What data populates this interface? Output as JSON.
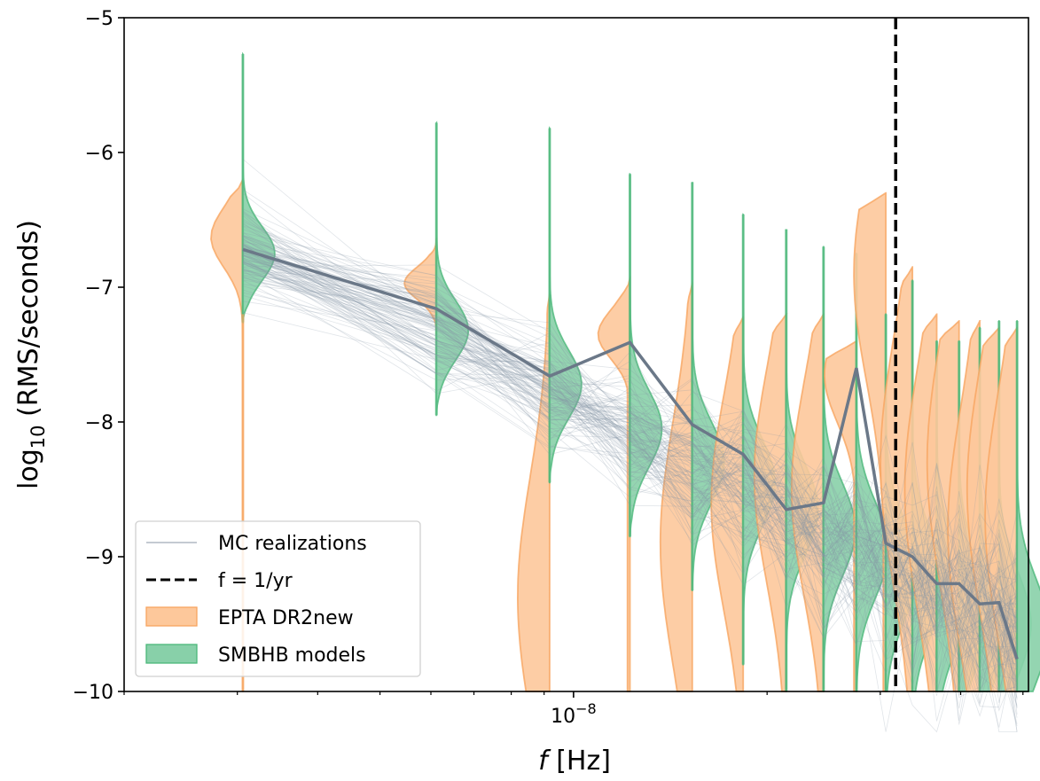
{
  "chart_data": {
    "type": "violin",
    "xlabel_italic": "f",
    "xlabel_unit": "[Hz]",
    "ylabel_main": "log",
    "ylabel_sub": "10",
    "ylabel_rest": " (RMS/seconds)",
    "xscale": "log",
    "xlim": [
      2e-09,
      5.1e-08
    ],
    "ylim": [
      -10,
      -5
    ],
    "grid": false,
    "legend_placement": "lower-left",
    "y_ticks": [
      -5,
      -6,
      -7,
      -8,
      -9,
      -10
    ],
    "y_tick_labels": [
      "−5",
      "−6",
      "−7",
      "−8",
      "−9",
      "−10"
    ],
    "x_major_tick": 1e-08,
    "x_major_tick_label_base": "10",
    "x_major_tick_label_exp": "−8",
    "x_minor_ticks": [
      2e-09,
      3e-09,
      4e-09,
      5e-09,
      6e-09,
      7e-09,
      8e-09,
      9e-09,
      2e-08,
      3e-08,
      4e-08,
      5e-08
    ],
    "frequencies": [
      3.06e-09,
      6.12e-09,
      9.18e-09,
      1.224e-08,
      1.53e-08,
      1.836e-08,
      2.142e-08,
      2.448e-08,
      2.754e-08,
      3.06e-08,
      3.366e-08,
      3.672e-08,
      3.978e-08,
      4.284e-08,
      4.59e-08,
      4.896e-08
    ],
    "one_over_year": 3.17e-08,
    "median_line": [
      -6.72,
      -7.16,
      -7.66,
      -7.41,
      -8.02,
      -8.24,
      -8.65,
      -8.6,
      -7.6,
      -8.9,
      -9.0,
      -9.2,
      -9.2,
      -9.35,
      -9.34,
      -9.76
    ],
    "epta_violins": [
      {
        "lo": -10,
        "hi": -6.2,
        "mode": -6.63,
        "sigma": 0.22
      },
      {
        "lo": -7.35,
        "hi": -6.64,
        "mode": -6.97,
        "sigma": 0.12
      },
      {
        "lo": -10,
        "hi": -7.05,
        "mode": -9.3,
        "sigma": 0.9
      },
      {
        "lo": -10,
        "hi": -6.93,
        "mode": -7.35,
        "sigma": 0.18
      },
      {
        "lo": -10,
        "hi": -6.97,
        "mode": -8.9,
        "sigma": 0.9
      },
      {
        "lo": -10,
        "hi": -7.22,
        "mode": -8.6,
        "sigma": 0.8
      },
      {
        "lo": -10,
        "hi": -7.2,
        "mode": -8.4,
        "sigma": 0.8
      },
      {
        "lo": -10,
        "hi": -7.2,
        "mode": -8.5,
        "sigma": 0.8
      },
      {
        "lo": -10,
        "hi": -7.4,
        "mode": -7.65,
        "sigma": 0.35
      },
      {
        "lo": -10,
        "hi": -6.3,
        "mode": -6.9,
        "sigma": 0.8
      },
      {
        "lo": -10,
        "hi": -6.85,
        "mode": -8.3,
        "sigma": 0.9
      },
      {
        "lo": -10,
        "hi": -7.2,
        "mode": -8.5,
        "sigma": 0.9
      },
      {
        "lo": -10,
        "hi": -7.25,
        "mode": -8.3,
        "sigma": 0.9
      },
      {
        "lo": -10,
        "hi": -7.25,
        "mode": -8.8,
        "sigma": 0.9
      },
      {
        "lo": -10,
        "hi": -7.3,
        "mode": -8.5,
        "sigma": 0.9
      },
      {
        "lo": -10,
        "hi": -7.3,
        "mode": -8.7,
        "sigma": 0.9
      }
    ],
    "smbhb_violins": [
      {
        "lo": -7.26,
        "hi": -5.27,
        "mode": -6.75,
        "sigma": 0.2
      },
      {
        "lo": -7.95,
        "hi": -5.78,
        "mode": -7.32,
        "sigma": 0.22
      },
      {
        "lo": -8.45,
        "hi": -5.82,
        "mode": -7.72,
        "sigma": 0.25
      },
      {
        "lo": -8.85,
        "hi": -6.16,
        "mode": -8.05,
        "sigma": 0.28
      },
      {
        "lo": -9.25,
        "hi": -6.22,
        "mode": -8.3,
        "sigma": 0.3
      },
      {
        "lo": -9.8,
        "hi": -6.46,
        "mode": -8.45,
        "sigma": 0.32
      },
      {
        "lo": -10,
        "hi": -6.57,
        "mode": -8.65,
        "sigma": 0.33
      },
      {
        "lo": -10,
        "hi": -6.7,
        "mode": -8.8,
        "sigma": 0.34
      },
      {
        "lo": -10,
        "hi": -6.75,
        "mode": -8.95,
        "sigma": 0.35
      },
      {
        "lo": -10,
        "hi": -7.2,
        "mode": -9.1,
        "sigma": 0.36
      },
      {
        "lo": -10,
        "hi": -6.95,
        "mode": -9.2,
        "sigma": 0.37
      },
      {
        "lo": -10,
        "hi": -7.4,
        "mode": -9.3,
        "sigma": 0.38
      },
      {
        "lo": -10,
        "hi": -7.4,
        "mode": -9.4,
        "sigma": 0.38
      },
      {
        "lo": -10,
        "hi": -7.3,
        "mode": -9.45,
        "sigma": 0.38
      },
      {
        "lo": -10,
        "hi": -7.25,
        "mode": -9.5,
        "sigma": 0.38
      },
      {
        "lo": -10,
        "hi": -7.25,
        "mode": -9.55,
        "sigma": 0.38
      }
    ],
    "legend": [
      {
        "label": "MC realizations",
        "kind": "line"
      },
      {
        "label": "f = 1/yr",
        "kind": "dashed"
      },
      {
        "label": "EPTA DR2new",
        "kind": "patch-orange"
      },
      {
        "label": "SMBHB models",
        "kind": "patch-green"
      }
    ],
    "colors": {
      "epta_fill": "#fdc89b",
      "epta_edge": "#f7a560",
      "smbhb_fill": "#88d0a9",
      "smbhb_edge": "#4cb87b",
      "median": "#6b7888",
      "mc": "#8896a6",
      "dashed": "#000000"
    }
  }
}
